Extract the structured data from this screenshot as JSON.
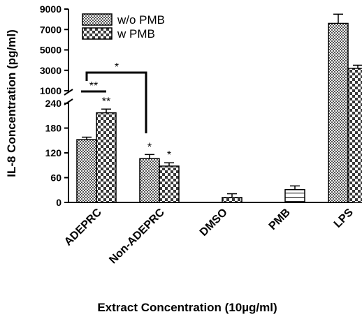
{
  "chart_data": {
    "type": "bar",
    "xlabel": "Extract Concentration (10µg/ml)",
    "ylabel": "IL-8 Concentration (pg/ml)",
    "categories": [
      "ADEPRC",
      "Non-ADEPRC",
      "DMSO",
      "PMB",
      "LPS"
    ],
    "y_axis_break": true,
    "lower_segment": {
      "ylim": [
        0,
        240
      ],
      "ticks": [
        "0",
        "60",
        "120",
        "180",
        "240"
      ]
    },
    "upper_segment": {
      "ylim": [
        1000,
        9000
      ],
      "ticks": [
        "1000",
        "3000",
        "5000",
        "7000",
        "9000"
      ]
    },
    "series": [
      {
        "name": "w/o PMB",
        "values": [
          152,
          106,
          null,
          null,
          7600
        ],
        "errors": [
          6,
          10,
          null,
          null,
          900
        ],
        "pattern": "checker-fine"
      },
      {
        "name": "w PMB",
        "values": [
          217,
          88,
          12,
          31,
          3200
        ],
        "errors": [
          9,
          8,
          9,
          9,
          300
        ],
        "pattern": "checker-coarse"
      }
    ],
    "bar_labels": [
      "",
      "**",
      "*",
      "*",
      "",
      "",
      "",
      "",
      "",
      ""
    ],
    "comparisons": [
      {
        "from": "ADEPRC w/o PMB",
        "to": "ADEPRC w PMB",
        "label": "**"
      },
      {
        "from": "ADEPRC w/o PMB",
        "to": "Non-ADEPRC w/o PMB",
        "label": "*"
      }
    ],
    "legend_position": "top-left",
    "grid": false
  }
}
